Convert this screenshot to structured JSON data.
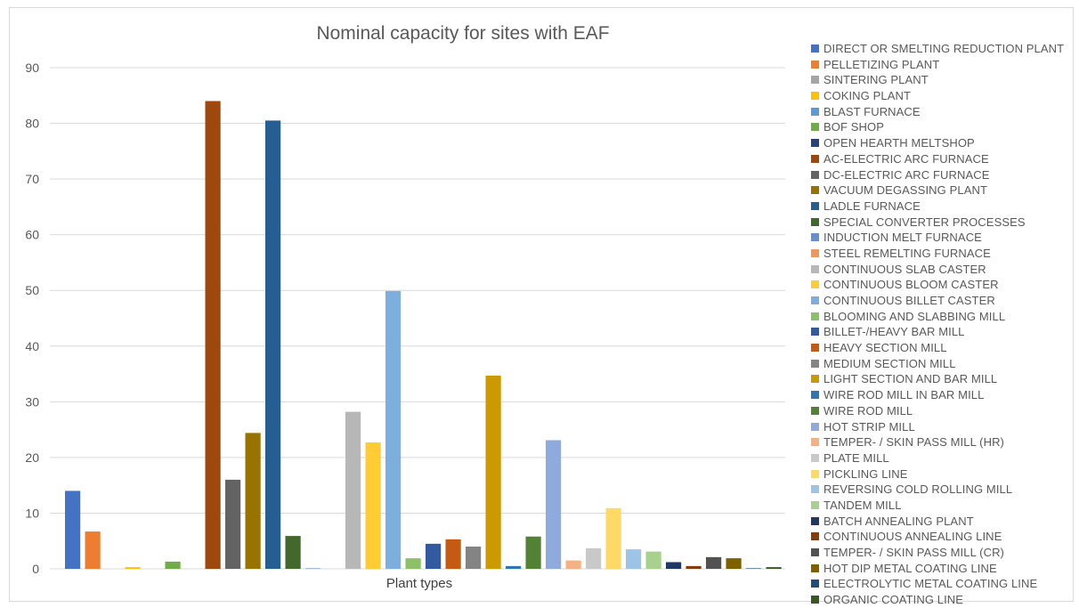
{
  "chart_data": {
    "type": "bar",
    "title": "Nominal capacity for sites with EAF",
    "xlabel": "Plant types",
    "ylabel": "",
    "ylim": [
      0,
      90
    ],
    "yticks": [
      0,
      10,
      20,
      30,
      40,
      50,
      60,
      70,
      80,
      90
    ],
    "grid": true,
    "legend_position": "right",
    "categories": [
      "Plant types"
    ],
    "series": [
      {
        "name": "DIRECT OR SMELTING REDUCTION PLANT",
        "color": "#4472C4",
        "values": [
          14
        ]
      },
      {
        "name": "PELLETIZING PLANT",
        "color": "#ED7D31",
        "values": [
          6.7
        ]
      },
      {
        "name": "SINTERING PLANT",
        "color": "#A5A5A5",
        "values": [
          0
        ]
      },
      {
        "name": "COKING PLANT",
        "color": "#FFC000",
        "values": [
          0.3
        ]
      },
      {
        "name": "BLAST FURNACE",
        "color": "#5B9BD5",
        "values": [
          0
        ]
      },
      {
        "name": "BOF SHOP",
        "color": "#70AD47",
        "values": [
          1.3
        ]
      },
      {
        "name": "OPEN HEARTH MELTSHOP",
        "color": "#264478",
        "values": [
          0
        ]
      },
      {
        "name": "AC-ELECTRIC ARC FURNACE",
        "color": "#9E480E",
        "values": [
          84
        ]
      },
      {
        "name": "DC-ELECTRIC ARC FURNACE",
        "color": "#636363",
        "values": [
          16
        ]
      },
      {
        "name": "VACUUM DEGASSING PLANT",
        "color": "#997300",
        "values": [
          24.4
        ]
      },
      {
        "name": "LADLE FURNACE",
        "color": "#255E91",
        "values": [
          80.5
        ]
      },
      {
        "name": "SPECIAL CONVERTER PROCESSES",
        "color": "#43682B",
        "values": [
          5.9
        ]
      },
      {
        "name": "INDUCTION MELT FURNACE",
        "color": "#698ED0",
        "values": [
          0.1
        ]
      },
      {
        "name": "STEEL REMELTING FURNACE",
        "color": "#F1975A",
        "values": [
          0
        ]
      },
      {
        "name": "CONTINUOUS SLAB CASTER",
        "color": "#B7B7B7",
        "values": [
          28.2
        ]
      },
      {
        "name": "CONTINUOUS BLOOM CASTER",
        "color": "#FFCD33",
        "values": [
          22.7
        ]
      },
      {
        "name": "CONTINUOUS BILLET CASTER",
        "color": "#7CAFDD",
        "values": [
          49.9
        ]
      },
      {
        "name": "BLOOMING AND SLABBING MILL",
        "color": "#8CC168",
        "values": [
          1.9
        ]
      },
      {
        "name": "BILLET-/HEAVY BAR MILL",
        "color": "#335AA1",
        "values": [
          4.5
        ]
      },
      {
        "name": "HEAVY SECTION MILL",
        "color": "#C55A11",
        "values": [
          5.3
        ]
      },
      {
        "name": "MEDIUM SECTION MILL",
        "color": "#848484",
        "values": [
          4
        ]
      },
      {
        "name": "LIGHT SECTION AND BAR MILL",
        "color": "#CC9A00",
        "values": [
          34.7
        ]
      },
      {
        "name": "WIRE ROD MILL IN BAR MILL",
        "color": "#2E75B6",
        "values": [
          0.5
        ]
      },
      {
        "name": "WIRE ROD MILL",
        "color": "#548235",
        "values": [
          5.8
        ]
      },
      {
        "name": "HOT STRIP MILL",
        "color": "#8FAADC",
        "values": [
          23.1
        ]
      },
      {
        "name": "TEMPER- / SKIN PASS MILL (HR)",
        "color": "#F4B183",
        "values": [
          1.5
        ]
      },
      {
        "name": "PLATE MILL",
        "color": "#C9C9C9",
        "values": [
          3.7
        ]
      },
      {
        "name": "PICKLING LINE",
        "color": "#FFD966",
        "values": [
          10.9
        ]
      },
      {
        "name": "REVERSING COLD ROLLING MILL",
        "color": "#9DC3E6",
        "values": [
          3.5
        ]
      },
      {
        "name": "TANDEM MILL",
        "color": "#A9D18E",
        "values": [
          3.1
        ]
      },
      {
        "name": "BATCH ANNEALING PLANT",
        "color": "#203864",
        "values": [
          1.2
        ]
      },
      {
        "name": "CONTINUOUS ANNEALING LINE",
        "color": "#843C0C",
        "values": [
          0.5
        ]
      },
      {
        "name": "TEMPER- / SKIN PASS MILL (CR)",
        "color": "#525252",
        "values": [
          2.1
        ]
      },
      {
        "name": "HOT DIP METAL COATING LINE",
        "color": "#7F6000",
        "values": [
          1.9
        ]
      },
      {
        "name": "ELECTROLYTIC METAL COATING LINE",
        "color": "#1F4E79",
        "values": [
          0.1
        ]
      },
      {
        "name": "ORGANIC COATING LINE",
        "color": "#385723",
        "values": [
          0.3
        ]
      }
    ]
  }
}
